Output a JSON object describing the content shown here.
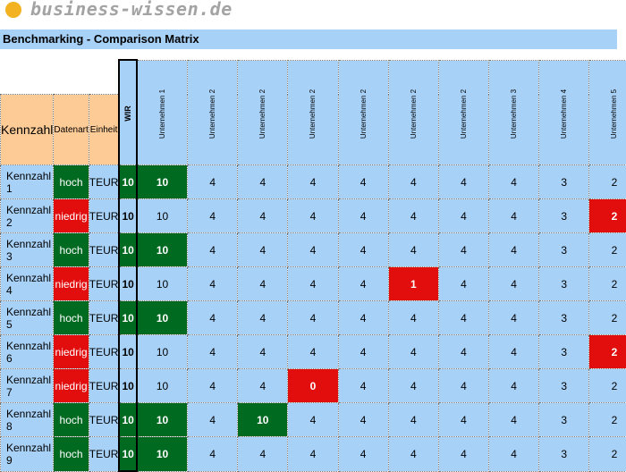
{
  "header": {
    "logo_icon": "orange-dot-icon",
    "logo_text": "business-wissen.de"
  },
  "title": "Benchmarking - Comparison Matrix",
  "colors": {
    "green": "#006a21",
    "red": "#e20d0d",
    "blue": "#a8d1f7",
    "orange": "#fdcb96"
  },
  "columns": {
    "kennzahl": "Kennzahl",
    "datenart": "Datenart",
    "einheit": "Einheit",
    "wir": "WIR",
    "companies": [
      "Unternehmen 1",
      "Unternehmen 2",
      "Unternehmen 2",
      "Unternehmen 2",
      "Unternehmen 2",
      "Unternehmen 2",
      "Unternehmen 2",
      "Unternehmen 3",
      "Unternehmen 4",
      "Unternehmen 5"
    ]
  },
  "rows": [
    {
      "name": "Kennzahl 1",
      "datenart": "hoch",
      "einheit": "TEUR",
      "wir": "10",
      "values": [
        "10",
        "4",
        "4",
        "4",
        "4",
        "4",
        "4",
        "4",
        "3",
        "2"
      ]
    },
    {
      "name": "Kennzahl 2",
      "datenart": "niedrig",
      "einheit": "TEUR",
      "wir": "10",
      "values": [
        "10",
        "4",
        "4",
        "4",
        "4",
        "4",
        "4",
        "4",
        "3",
        "2"
      ]
    },
    {
      "name": "Kennzahl 3",
      "datenart": "hoch",
      "einheit": "TEUR",
      "wir": "10",
      "values": [
        "10",
        "4",
        "4",
        "4",
        "4",
        "4",
        "4",
        "4",
        "3",
        "2"
      ]
    },
    {
      "name": "Kennzahl 4",
      "datenart": "niedrig",
      "einheit": "TEUR",
      "wir": "10",
      "values": [
        "10",
        "4",
        "4",
        "4",
        "4",
        "1",
        "4",
        "4",
        "3",
        "2"
      ]
    },
    {
      "name": "Kennzahl 5",
      "datenart": "hoch",
      "einheit": "TEUR",
      "wir": "10",
      "values": [
        "10",
        "4",
        "4",
        "4",
        "4",
        "4",
        "4",
        "4",
        "3",
        "2"
      ]
    },
    {
      "name": "Kennzahl 6",
      "datenart": "niedrig",
      "einheit": "TEUR",
      "wir": "10",
      "values": [
        "10",
        "4",
        "4",
        "4",
        "4",
        "4",
        "4",
        "4",
        "3",
        "2"
      ]
    },
    {
      "name": "Kennzahl 7",
      "datenart": "niedrig",
      "einheit": "TEUR",
      "wir": "10",
      "values": [
        "10",
        "4",
        "4",
        "0",
        "4",
        "4",
        "4",
        "4",
        "3",
        "2"
      ]
    },
    {
      "name": "Kennzahl 8",
      "datenart": "hoch",
      "einheit": "TEUR",
      "wir": "10",
      "values": [
        "10",
        "4",
        "10",
        "4",
        "4",
        "4",
        "4",
        "4",
        "3",
        "2"
      ]
    },
    {
      "name": "Kennzahl 9",
      "datenart": "hoch",
      "einheit": "TEUR",
      "wir": "10",
      "values": [
        "10",
        "4",
        "4",
        "4",
        "4",
        "4",
        "4",
        "4",
        "3",
        "2"
      ]
    }
  ]
}
